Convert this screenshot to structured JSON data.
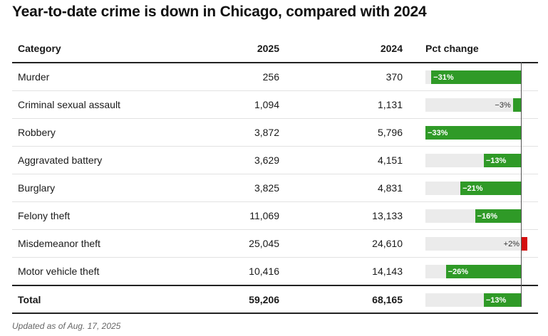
{
  "chart_data": {
    "type": "table",
    "title": "Year-to-date crime is down in Chicago, compared with 2024",
    "columns": {
      "category": "Category",
      "y2025": "2025",
      "y2024": "2024",
      "pct": "Pct change"
    },
    "rows": [
      {
        "category": "Murder",
        "y2025": "256",
        "y2024": "370",
        "pct_label": "−31%",
        "pct": -31
      },
      {
        "category": "Criminal sexual assault",
        "y2025": "1,094",
        "y2024": "1,131",
        "pct_label": "−3%",
        "pct": -3
      },
      {
        "category": "Robbery",
        "y2025": "3,872",
        "y2024": "5,796",
        "pct_label": "−33%",
        "pct": -33
      },
      {
        "category": "Aggravated battery",
        "y2025": "3,629",
        "y2024": "4,151",
        "pct_label": "−13%",
        "pct": -13
      },
      {
        "category": "Burglary",
        "y2025": "3,825",
        "y2024": "4,831",
        "pct_label": "−21%",
        "pct": -21
      },
      {
        "category": "Felony theft",
        "y2025": "11,069",
        "y2024": "13,133",
        "pct_label": "−16%",
        "pct": -16
      },
      {
        "category": "Misdemeanor theft",
        "y2025": "25,045",
        "y2024": "24,610",
        "pct_label": "+2%",
        "pct": 2
      },
      {
        "category": "Motor vehicle theft",
        "y2025": "10,416",
        "y2024": "14,143",
        "pct_label": "−26%",
        "pct": -26
      }
    ],
    "total": {
      "category": "Total",
      "y2025": "59,206",
      "y2024": "68,165",
      "pct_label": "−13%",
      "pct": -13
    },
    "pct_range": [
      -33,
      2
    ],
    "colors": {
      "decrease": "#2f9a27",
      "increase": "#d40d0d",
      "track": "#ebebeb"
    }
  },
  "footnote": "Updated as of Aug. 17, 2025"
}
